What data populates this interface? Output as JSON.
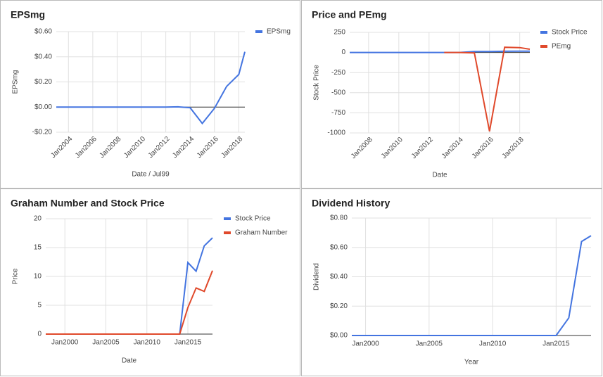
{
  "chart_data": [
    {
      "type": "line",
      "title": "EPSmg",
      "x_label": "Date / Jul99",
      "y_label": "EPSmg",
      "x": [
        "Jan2003",
        "Jan2004",
        "Jan2005",
        "Jan2006",
        "Jan2007",
        "Jan2008",
        "Jan2009",
        "Jan2010",
        "Jan2011",
        "Jan2012",
        "Jan2013",
        "Jan2014",
        "Jan2015",
        "Jan2016",
        "Jan2017",
        "Jan2018",
        "Jul2018"
      ],
      "xlim": [
        "Jan2003",
        "Jul2018"
      ],
      "xticks": [
        "Jan2004",
        "Jan2006",
        "Jan2008",
        "Jan2010",
        "Jan2012",
        "Jan2014",
        "Jan2016",
        "Jan2018"
      ],
      "xtick_rotation": -45,
      "ylim": [
        -0.2,
        0.6
      ],
      "yticks": [
        {
          "value": 0.6,
          "label": "$0.60"
        },
        {
          "value": 0.4,
          "label": "$0.40"
        },
        {
          "value": 0.2,
          "label": "$0.20"
        },
        {
          "value": 0,
          "label": "$0.00"
        },
        {
          "value": -0.2,
          "label": "-$0.20"
        }
      ],
      "grid": true,
      "legend": "right",
      "series": [
        {
          "name": "EPSmg",
          "color": "#4374e0",
          "values": [
            0,
            0,
            0,
            0,
            0,
            0,
            0,
            0,
            0,
            0,
            0.002,
            -0.005,
            -0.13,
            -0.01,
            0.165,
            0.26,
            0.44
          ]
        }
      ]
    },
    {
      "type": "line",
      "title": "Price and PEmg",
      "x_label": "Date",
      "y_label": "Stock Price",
      "x": [
        "Oct2006",
        "Jan2007",
        "Jan2008",
        "Jan2009",
        "Jan2010",
        "Jan2011",
        "Jan2012",
        "Jan2013",
        "Jan2014",
        "Jan2015",
        "Jan2016",
        "Jan2017",
        "Jan2018",
        "Sep2018"
      ],
      "xlim": [
        "Oct2006",
        "Sep2018"
      ],
      "xticks": [
        "Jan2008",
        "Jan2010",
        "Jan2012",
        "Jan2014",
        "Jan2016",
        "Jan2018"
      ],
      "xtick_rotation": -45,
      "ylim": [
        -1000,
        250
      ],
      "yticks": [
        250,
        0,
        -250,
        -500,
        -750,
        -1000
      ],
      "grid": true,
      "legend": "right",
      "series": [
        {
          "name": "Stock Price",
          "color": "#4374e0",
          "values": [
            0,
            0,
            0,
            0,
            0,
            0,
            0,
            0,
            0,
            12,
            11,
            15,
            17,
            17
          ]
        },
        {
          "name": "PEmg",
          "color": "#e0492b",
          "values": [
            null,
            null,
            null,
            null,
            null,
            null,
            null,
            0,
            0,
            -5,
            -980,
            65,
            60,
            40
          ]
        }
      ]
    },
    {
      "type": "line",
      "title": "Graham Number and Stock Price",
      "x_label": "Date",
      "y_label": "Price",
      "x": [
        "Sep1997",
        "Jan1998",
        "Jan1999",
        "Jan2000",
        "Jan2001",
        "Jan2002",
        "Jan2003",
        "Jan2004",
        "Jan2005",
        "Jan2006",
        "Jan2007",
        "Jan2008",
        "Jan2009",
        "Jan2010",
        "Jan2011",
        "Jan2012",
        "Jan2013",
        "Jan2014",
        "Jan2015",
        "Jan2016",
        "Jan2017",
        "Jan2018"
      ],
      "xlim": [
        "Sep1997",
        "Jan2018"
      ],
      "xticks": [
        "Jan2000",
        "Jan2005",
        "Jan2010",
        "Jan2015"
      ],
      "xtick_rotation": 0,
      "ylim": [
        0,
        20
      ],
      "yticks": [
        0,
        5,
        10,
        15,
        20
      ],
      "grid": true,
      "legend": "right",
      "series": [
        {
          "name": "Stock Price",
          "color": "#4374e0",
          "values": [
            0,
            0,
            0,
            0,
            0,
            0,
            0,
            0,
            0,
            0,
            0,
            0,
            0,
            0,
            0,
            0,
            0,
            0,
            12.4,
            10.9,
            15.3,
            16.7
          ]
        },
        {
          "name": "Graham Number",
          "color": "#e0492b",
          "values": [
            0,
            0,
            0,
            0,
            0,
            0,
            0,
            0,
            0,
            0,
            0,
            0,
            0,
            0,
            0,
            0,
            0,
            0,
            4.6,
            8.0,
            7.4,
            11.0
          ]
        }
      ]
    },
    {
      "type": "line",
      "title": "Dividend History",
      "x_label": "Year",
      "y_label": "Dividend",
      "x": [
        "Dec1998",
        "Jan1999",
        "Jan2000",
        "Jan2001",
        "Jan2002",
        "Jan2003",
        "Jan2004",
        "Jan2005",
        "Jan2006",
        "Jan2007",
        "Jan2008",
        "Jan2009",
        "Jan2010",
        "Jan2011",
        "Jan2012",
        "Jan2013",
        "Jan2014",
        "Jan2015",
        "Jan2016",
        "Jan2017",
        "Oct2017"
      ],
      "xlim": [
        "Dec1998",
        "Oct2017"
      ],
      "xticks": [
        "Jan2000",
        "Jan2005",
        "Jan2010",
        "Jan2015"
      ],
      "xtick_rotation": 0,
      "ylim": [
        0,
        0.8
      ],
      "yticks": [
        {
          "value": 0,
          "label": "$0.00"
        },
        {
          "value": 0.2,
          "label": "$0.20"
        },
        {
          "value": 0.4,
          "label": "$0.40"
        },
        {
          "value": 0.6,
          "label": "$0.60"
        },
        {
          "value": 0.8,
          "label": "$0.80"
        }
      ],
      "grid": true,
      "legend": "none",
      "series": [
        {
          "name": "Dividend",
          "color": "#4374e0",
          "values": [
            0,
            0,
            0,
            0,
            0,
            0,
            0,
            0,
            0,
            0,
            0,
            0,
            0,
            0,
            0,
            0,
            0,
            0,
            0.12,
            0.64,
            0.68
          ]
        }
      ]
    }
  ]
}
